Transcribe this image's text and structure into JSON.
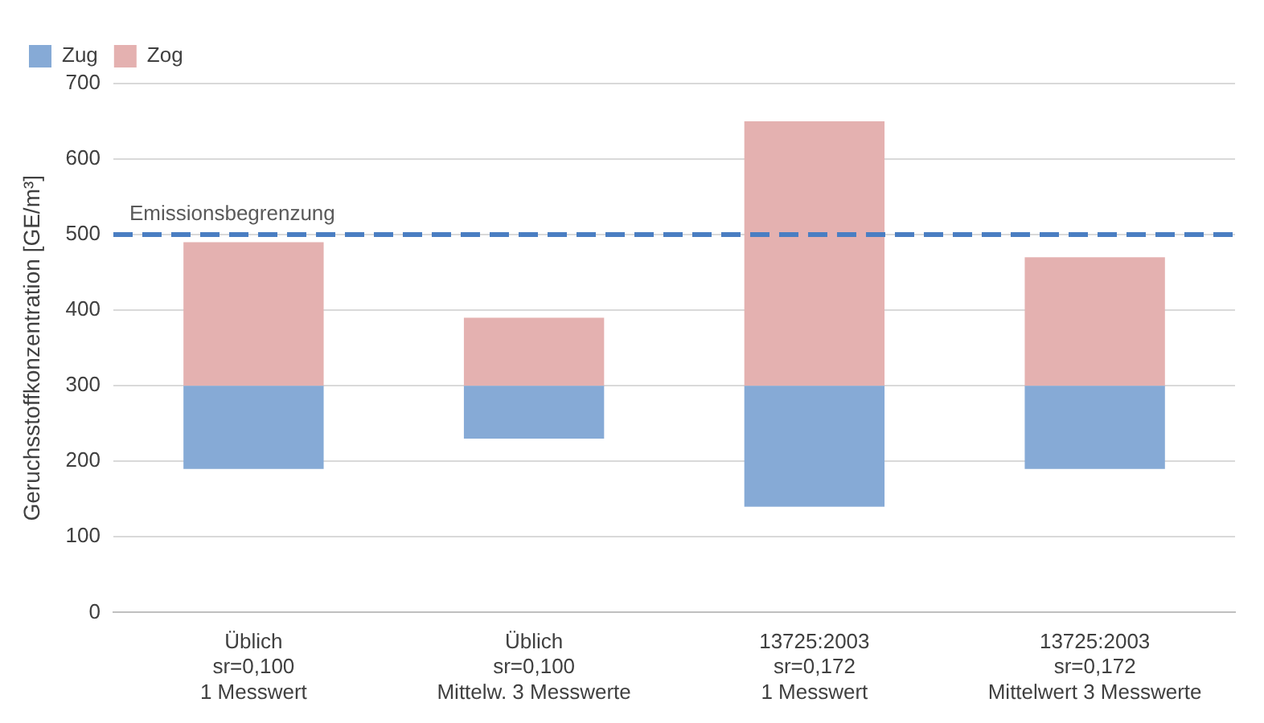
{
  "chart_data": {
    "type": "bar",
    "ylabel": "Geruchsstoffkonzentration [GE/m³]",
    "categories": [
      "Üblich\nsr=0,100\n1 Messwert",
      "Üblich\nsr=0,100\nMittelw. 3 Messwerte",
      "13725:2003\nsr=0,172\n1 Messwert",
      "13725:2003\nsr=0,172\nMittelwert 3 Messwerte"
    ],
    "series": [
      {
        "name": "Zug",
        "color": "#86aad6",
        "base": [
          190,
          230,
          140,
          190
        ],
        "values": [
          110,
          70,
          160,
          110
        ]
      },
      {
        "name": "Zog",
        "color": "#e4b1b0",
        "base": [
          300,
          300,
          300,
          300
        ],
        "values": [
          190,
          90,
          350,
          170
        ]
      }
    ],
    "ylim": [
      0,
      700
    ],
    "yticks": [
      0,
      100,
      200,
      300,
      400,
      500,
      600,
      700
    ],
    "grid": "y",
    "legend": "top left",
    "ref_lines": [
      {
        "axis": "y",
        "value": 500,
        "label": "Emissionsbegrenzung",
        "color": "#4a7ec2",
        "line_style": "dashed"
      }
    ]
  }
}
